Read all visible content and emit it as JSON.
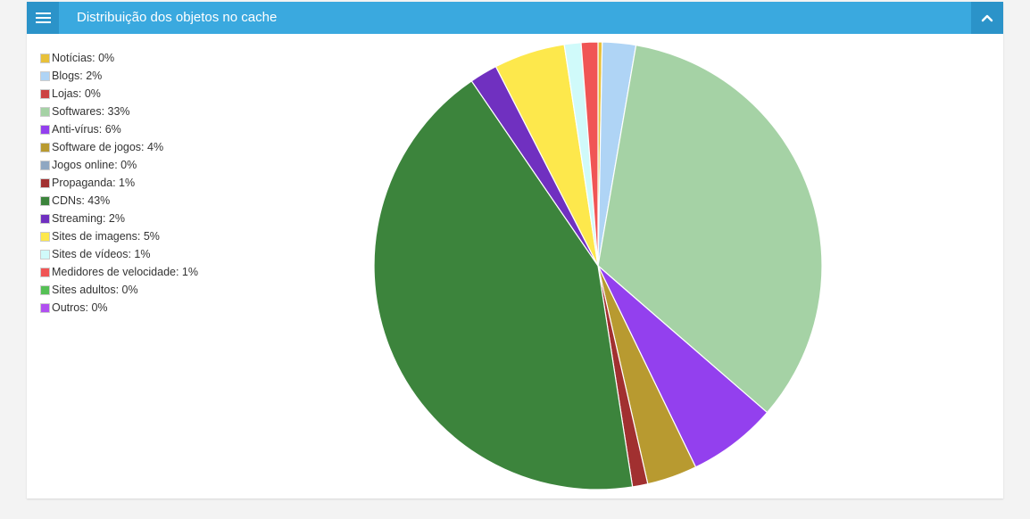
{
  "header": {
    "title": "Distribuição dos objetos no cache",
    "menu_icon": "menu-icon",
    "collapse_icon": "chevron-up-icon"
  },
  "colors": {
    "header_bg": "#3aa9df",
    "header_button_bg": "#2b93c9"
  },
  "chart_data": {
    "type": "pie",
    "title": "",
    "legend_position": "top-left",
    "slices": [
      {
        "label": "Notícias: 0%",
        "name": "Notícias",
        "value": 0.3,
        "color": "#e8c13a"
      },
      {
        "label": "Blogs: 2%",
        "name": "Blogs",
        "value": 2.4,
        "color": "#afd4f5"
      },
      {
        "label": "Lojas: 0%",
        "name": "Lojas",
        "value": 0,
        "color": "#cc4444"
      },
      {
        "label": "Softwares: 33%",
        "name": "Softwares",
        "value": 33.5,
        "color": "#a5d2a5"
      },
      {
        "label": "Anti-vírus: 6%",
        "name": "Anti-vírus",
        "value": 6.4,
        "color": "#9340ee"
      },
      {
        "label": "Software de jogos: 4%",
        "name": "Software de jogos",
        "value": 3.6,
        "color": "#b89a30"
      },
      {
        "label": "Jogos online: 0%",
        "name": "Jogos online",
        "value": 0,
        "color": "#8fa7c2"
      },
      {
        "label": "Propaganda: 1%",
        "name": "Propaganda",
        "value": 1.1,
        "color": "#a13030"
      },
      {
        "label": "CDNs: 43%",
        "name": "CDNs",
        "value": 42.7,
        "color": "#3c843c"
      },
      {
        "label": "Streaming: 2%",
        "name": "Streaming",
        "value": 2.0,
        "color": "#7030c0"
      },
      {
        "label": "Sites de imagens: 5%",
        "name": "Sites de imagens",
        "value": 5.1,
        "color": "#fde84c"
      },
      {
        "label": "Sites de vídeos: 1%",
        "name": "Sites de vídeos",
        "value": 1.2,
        "color": "#d0fafa"
      },
      {
        "label": "Medidores de velocidade: 1%",
        "name": "Medidores de velocidade",
        "value": 1.2,
        "color": "#f05555"
      },
      {
        "label": "Sites adultos: 0%",
        "name": "Sites adultos",
        "value": 0,
        "color": "#55c055"
      },
      {
        "label": "Outros: 0%",
        "name": "Outros",
        "value": 0,
        "color": "#b050f0"
      }
    ]
  }
}
